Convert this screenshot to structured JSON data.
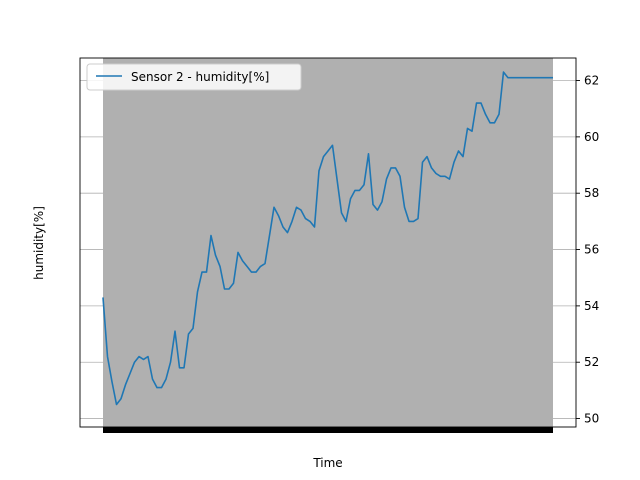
{
  "chart_data": {
    "type": "line",
    "title": "",
    "xlabel": "Time",
    "ylabel": "humidity[%]",
    "ylim": [
      49.7,
      62.8
    ],
    "yticks": [
      50,
      52,
      54,
      56,
      58,
      60,
      62
    ],
    "grid": "horizontal",
    "legend_position": "top-left",
    "x_tick_labels_note": "dense overlapping date labels (illegible)",
    "series": [
      {
        "name": "Sensor 2 -  humidity[%]",
        "color": "#1f77b4",
        "x": [
          0,
          1,
          2,
          3,
          4,
          5,
          6,
          7,
          8,
          9,
          10,
          11,
          12,
          13,
          14,
          15,
          16,
          17,
          18,
          19,
          20,
          21,
          22,
          23,
          24,
          25,
          26,
          27,
          28,
          29,
          30,
          31,
          32,
          33,
          34,
          35,
          36,
          37,
          38,
          39,
          40,
          41,
          42,
          43,
          44,
          45,
          46,
          47,
          48,
          49,
          50,
          51,
          52,
          53,
          54,
          55,
          56,
          57,
          58,
          59,
          60,
          61,
          62,
          63,
          64,
          65,
          66,
          67,
          68,
          69,
          70,
          71,
          72,
          73,
          74,
          75,
          76,
          77,
          78,
          79,
          80,
          81,
          82,
          83,
          84,
          85,
          86,
          87,
          88,
          89,
          90,
          91,
          92,
          93,
          94,
          95,
          96,
          97,
          98,
          99,
          100
        ],
        "values": [
          54.3,
          52.2,
          51.3,
          50.5,
          50.7,
          51.2,
          51.6,
          52.0,
          52.2,
          52.1,
          52.2,
          51.4,
          51.1,
          51.1,
          51.4,
          52.0,
          53.1,
          51.8,
          51.8,
          53.0,
          53.2,
          54.5,
          55.2,
          55.2,
          56.5,
          55.8,
          55.4,
          54.6,
          54.6,
          54.8,
          55.9,
          55.6,
          55.4,
          55.2,
          55.2,
          55.4,
          55.5,
          56.5,
          57.5,
          57.2,
          56.8,
          56.6,
          57.0,
          57.5,
          57.4,
          57.1,
          57.0,
          56.8,
          58.8,
          59.3,
          59.5,
          59.7,
          58.5,
          57.3,
          57.0,
          57.8,
          58.1,
          58.1,
          58.3,
          59.4,
          57.6,
          57.4,
          57.7,
          58.5,
          58.9,
          58.9,
          58.6,
          57.5,
          57.0,
          57.0,
          57.1,
          59.1,
          59.3,
          58.9,
          58.7,
          58.6,
          58.6,
          58.5,
          59.1,
          59.5,
          59.3,
          60.3,
          60.2,
          61.2,
          61.2,
          60.8,
          60.5,
          60.5,
          60.8,
          62.3,
          62.1,
          62.1,
          62.1,
          62.1,
          62.1,
          62.1,
          62.1,
          62.1,
          62.1,
          62.1,
          62.1
        ]
      }
    ]
  }
}
